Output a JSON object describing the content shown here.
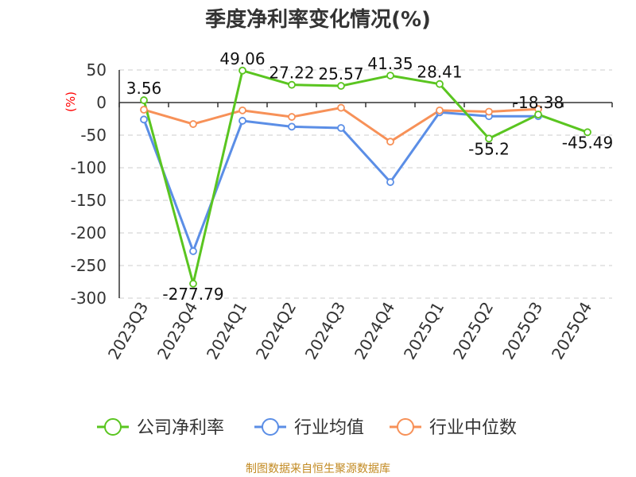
{
  "chart_data": {
    "type": "line",
    "title": "季度净利率变化情况(%)",
    "unit_label": "(%)",
    "categories": [
      "2023Q3",
      "2023Q4",
      "2024Q1",
      "2024Q2",
      "2024Q3",
      "2024Q4",
      "2025Q1",
      "2025Q2",
      "2025Q3",
      "2025Q4"
    ],
    "ylim": [
      -300,
      50
    ],
    "yticks": [
      "50",
      "0",
      "-50",
      "-100",
      "-150",
      "-200",
      "-250",
      "-300"
    ],
    "grid": true,
    "legend_position": "bottom",
    "series": [
      {
        "name": "公司净利率",
        "color": "#5ac520",
        "values": [
          3.56,
          -277.79,
          49.06,
          27.22,
          25.57,
          41.35,
          28.41,
          -55.2,
          -18.38,
          -45.49
        ],
        "labels": [
          "3.56",
          "-277.79",
          "49.06",
          "27.22",
          "25.57",
          "41.35",
          "28.41",
          "-55.2",
          "-18.38",
          "-45.49"
        ]
      },
      {
        "name": "行业均值",
        "color": "#5b8ee6",
        "values": [
          -26,
          -228,
          -28,
          -37,
          -39,
          -122,
          -15,
          -21,
          -21,
          null
        ]
      },
      {
        "name": "行业中位数",
        "color": "#f79158",
        "values": [
          -11,
          -33,
          -12,
          -22,
          -8,
          -60,
          -12,
          -14,
          -10,
          null
        ]
      }
    ]
  },
  "source": "制图数据来自恒生聚源数据库"
}
